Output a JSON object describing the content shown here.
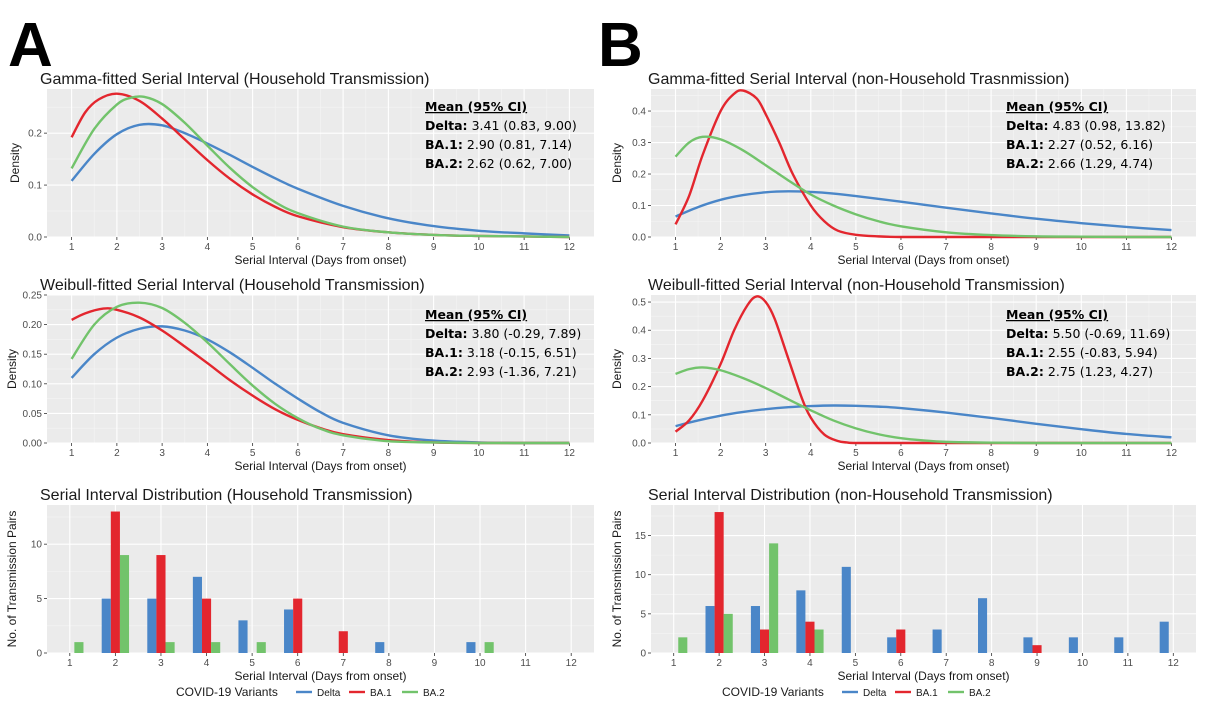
{
  "panel_letters": [
    "A",
    "B"
  ],
  "colors": {
    "Delta": "#4a86c8",
    "BA.1": "#e3262e",
    "BA.2": "#72c36b"
  },
  "legend": {
    "title": "COVID-19 Variants",
    "items": [
      "Delta",
      "BA.1",
      "BA.2"
    ]
  },
  "chart_data": [
    {
      "id": "A-gamma",
      "type": "line",
      "title": "Gamma-fitted Serial Interval (Household Transmission)",
      "xlabel": "Serial Interval (Days from onset)",
      "ylabel": "Density",
      "xlim": [
        1,
        12
      ],
      "ylim": [
        0,
        0.285
      ],
      "yticks": [
        0.0,
        0.1,
        0.2
      ],
      "ytick_labels": [
        "0.0",
        "0.1",
        "0.2"
      ],
      "xticks": [
        1,
        2,
        3,
        4,
        5,
        6,
        7,
        8,
        9,
        10,
        11,
        12
      ],
      "annotation": {
        "header": "Mean (95% CI)",
        "lines": [
          {
            "variant": "Delta:",
            "value": "3.41 (0.83, 9.00)"
          },
          {
            "variant": "BA.1:",
            "value": "2.90 (0.81, 7.14)"
          },
          {
            "variant": "BA.2:",
            "value": "2.62 (0.62, 7.00)"
          }
        ]
      },
      "series": [
        {
          "name": "Delta",
          "x": [
            1,
            1.5,
            2,
            2.5,
            3,
            3.5,
            4,
            4.5,
            5,
            5.5,
            6,
            7,
            8,
            9,
            10,
            11,
            12
          ],
          "y": [
            0.108,
            0.16,
            0.198,
            0.216,
            0.215,
            0.2,
            0.18,
            0.158,
            0.135,
            0.113,
            0.093,
            0.06,
            0.036,
            0.021,
            0.012,
            0.007,
            0.003
          ]
        },
        {
          "name": "BA.1",
          "x": [
            1,
            1.3,
            1.6,
            2,
            2.5,
            3,
            3.5,
            4,
            4.5,
            5,
            5.5,
            6,
            7,
            8,
            9,
            10,
            11,
            12
          ],
          "y": [
            0.192,
            0.24,
            0.265,
            0.276,
            0.262,
            0.228,
            0.188,
            0.148,
            0.112,
            0.082,
            0.058,
            0.04,
            0.019,
            0.009,
            0.004,
            0.002,
            0.001,
            0.0
          ]
        },
        {
          "name": "BA.2",
          "x": [
            1,
            1.5,
            2,
            2.3,
            2.6,
            3,
            3.5,
            4,
            4.5,
            5,
            5.5,
            6,
            7,
            8,
            9,
            10,
            11,
            12
          ],
          "y": [
            0.132,
            0.208,
            0.255,
            0.268,
            0.27,
            0.256,
            0.22,
            0.176,
            0.133,
            0.096,
            0.067,
            0.046,
            0.02,
            0.009,
            0.004,
            0.002,
            0.001,
            0.0
          ]
        }
      ]
    },
    {
      "id": "A-weibull",
      "type": "line",
      "title": "Weibull-fitted Serial Interval (Household Transmission)",
      "xlabel": "Serial Interval (Days from onset)",
      "ylabel": "Density",
      "xlim": [
        1,
        12
      ],
      "ylim": [
        0,
        0.25
      ],
      "yticks": [
        0.0,
        0.05,
        0.1,
        0.15,
        0.2,
        0.25
      ],
      "ytick_labels": [
        "0.00",
        "0.05",
        "0.10",
        "0.15",
        "0.20",
        "0.25"
      ],
      "xticks": [
        1,
        2,
        3,
        4,
        5,
        6,
        7,
        8,
        9,
        10,
        11,
        12
      ],
      "annotation": {
        "header": "Mean (95% CI)",
        "lines": [
          {
            "variant": "Delta:",
            "value": "3.80 (-0.29, 7.89)"
          },
          {
            "variant": "BA.1:",
            "value": "3.18 (-0.15, 6.51)"
          },
          {
            "variant": "BA.2:",
            "value": "2.93 (-1.36, 7.21)"
          }
        ]
      },
      "series": [
        {
          "name": "Delta",
          "x": [
            1,
            1.5,
            2,
            2.5,
            3,
            3.5,
            4,
            4.5,
            5,
            5.5,
            6,
            6.5,
            7,
            8,
            9,
            10,
            11,
            12
          ],
          "y": [
            0.11,
            0.15,
            0.178,
            0.193,
            0.197,
            0.19,
            0.175,
            0.153,
            0.127,
            0.1,
            0.075,
            0.052,
            0.034,
            0.013,
            0.004,
            0.001,
            0.0,
            0.0
          ]
        },
        {
          "name": "BA.1",
          "x": [
            1,
            1.3,
            1.7,
            2,
            2.5,
            3,
            3.5,
            4,
            4.5,
            5,
            5.5,
            6,
            6.5,
            7,
            8,
            9,
            10,
            11,
            12
          ],
          "y": [
            0.208,
            0.219,
            0.227,
            0.225,
            0.212,
            0.19,
            0.163,
            0.135,
            0.106,
            0.08,
            0.057,
            0.039,
            0.025,
            0.015,
            0.005,
            0.001,
            0.0,
            0.0,
            0.0
          ]
        },
        {
          "name": "BA.2",
          "x": [
            1,
            1.5,
            2,
            2.5,
            3,
            3.5,
            4,
            4.5,
            5,
            5.5,
            6,
            6.5,
            7,
            8,
            9,
            10,
            11,
            12
          ],
          "y": [
            0.142,
            0.2,
            0.23,
            0.237,
            0.228,
            0.203,
            0.17,
            0.133,
            0.097,
            0.066,
            0.042,
            0.024,
            0.013,
            0.003,
            0.001,
            0.0,
            0.0,
            0.0
          ]
        }
      ]
    },
    {
      "id": "A-bars",
      "type": "bar",
      "title": "Serial Interval Distribution (Household Transmission)",
      "xlabel": "Serial Interval (Days from onset)",
      "ylabel": "No. of Transmission Pairs",
      "categories": [
        "1",
        "2",
        "3",
        "4",
        "5",
        "6",
        "7",
        "8",
        "9",
        "10",
        "11",
        "12"
      ],
      "ylim": [
        0,
        13.6
      ],
      "yticks": [
        0,
        5,
        10
      ],
      "ytick_labels": [
        "0",
        "5",
        "10"
      ],
      "series": [
        {
          "name": "Delta",
          "values": [
            0,
            5,
            5,
            7,
            3,
            4,
            0,
            1,
            0,
            1,
            0,
            0
          ]
        },
        {
          "name": "BA.1",
          "values": [
            0,
            13,
            9,
            5,
            0,
            5,
            2,
            0,
            0,
            0,
            0,
            0
          ]
        },
        {
          "name": "BA.2",
          "values": [
            1,
            9,
            1,
            1,
            1,
            0,
            0,
            0,
            0,
            1,
            0,
            0
          ]
        }
      ]
    },
    {
      "id": "B-gamma",
      "type": "line",
      "title": "Gamma-fitted Serial Interval (non-Household Trasnmission)",
      "xlabel": "Serial Interval (Days from onset)",
      "ylabel": "Density",
      "xlim": [
        1,
        12
      ],
      "ylim": [
        0,
        0.47
      ],
      "yticks": [
        0.0,
        0.1,
        0.2,
        0.3,
        0.4
      ],
      "ytick_labels": [
        "0.0",
        "0.1",
        "0.2",
        "0.3",
        "0.4"
      ],
      "xticks": [
        1,
        2,
        3,
        4,
        5,
        6,
        7,
        8,
        9,
        10,
        11,
        12
      ],
      "annotation": {
        "header": "Mean (95% CI)",
        "lines": [
          {
            "variant": "Delta:",
            "value": "4.83 (0.98, 13.82)"
          },
          {
            "variant": "BA.1:",
            "value": "2.27 (0.52, 6.16)"
          },
          {
            "variant": "BA.2:",
            "value": "2.66 (1.29, 4.74)"
          }
        ]
      },
      "series": [
        {
          "name": "Delta",
          "x": [
            1,
            1.5,
            2,
            2.5,
            3,
            3.5,
            4,
            4.5,
            5,
            6,
            7,
            8,
            9,
            10,
            11,
            12
          ],
          "y": [
            0.065,
            0.095,
            0.118,
            0.133,
            0.142,
            0.145,
            0.143,
            0.138,
            0.13,
            0.112,
            0.093,
            0.075,
            0.058,
            0.044,
            0.032,
            0.022
          ]
        },
        {
          "name": "BA.1",
          "x": [
            1,
            1.3,
            1.6,
            2,
            2.3,
            2.5,
            2.8,
            3,
            3.3,
            3.6,
            4,
            4.3,
            4.6,
            5,
            5.5,
            6,
            7,
            8,
            9,
            10,
            11,
            12
          ],
          "y": [
            0.04,
            0.13,
            0.26,
            0.4,
            0.455,
            0.465,
            0.44,
            0.39,
            0.3,
            0.2,
            0.1,
            0.05,
            0.02,
            0.007,
            0.002,
            0.0,
            0.0,
            0.0,
            0.0,
            0.0,
            0.0,
            0.0
          ]
        },
        {
          "name": "BA.2",
          "x": [
            1,
            1.3,
            1.6,
            2,
            2.5,
            3,
            3.5,
            4,
            4.5,
            5,
            5.5,
            6,
            7,
            8,
            9,
            10,
            11,
            12
          ],
          "y": [
            0.255,
            0.3,
            0.318,
            0.31,
            0.275,
            0.228,
            0.18,
            0.135,
            0.1,
            0.072,
            0.05,
            0.034,
            0.015,
            0.006,
            0.002,
            0.001,
            0.0,
            0.0
          ]
        }
      ]
    },
    {
      "id": "B-weibull",
      "type": "line",
      "title": "Weibull-fitted Serial Interval (non-Household Transmission)",
      "xlabel": "Serial Interval (Days from onset)",
      "ylabel": "Density",
      "xlim": [
        1,
        12
      ],
      "ylim": [
        0,
        0.525
      ],
      "yticks": [
        0.0,
        0.1,
        0.2,
        0.3,
        0.4,
        0.5
      ],
      "ytick_labels": [
        "0.0",
        "0.1",
        "0.2",
        "0.3",
        "0.4",
        "0.5"
      ],
      "xticks": [
        1,
        2,
        3,
        4,
        5,
        6,
        7,
        8,
        9,
        10,
        11,
        12
      ],
      "annotation": {
        "header": "Mean (95% CI)",
        "lines": [
          {
            "variant": "Delta:",
            "value": "5.50 (-0.69, 11.69)"
          },
          {
            "variant": "BA.1:",
            "value": "2.55 (-0.83, 5.94)"
          },
          {
            "variant": "BA.2:",
            "value": "2.75 (1.23, 4.27)"
          }
        ]
      },
      "series": [
        {
          "name": "Delta",
          "x": [
            1,
            1.5,
            2,
            2.5,
            3,
            3.5,
            4,
            4.5,
            5,
            5.5,
            6,
            7,
            8,
            9,
            10,
            11,
            12
          ],
          "y": [
            0.06,
            0.08,
            0.097,
            0.11,
            0.12,
            0.127,
            0.131,
            0.133,
            0.132,
            0.129,
            0.124,
            0.108,
            0.089,
            0.068,
            0.049,
            0.032,
            0.02
          ]
        },
        {
          "name": "BA.1",
          "x": [
            1,
            1.3,
            1.6,
            2,
            2.3,
            2.6,
            2.8,
            3,
            3.2,
            3.5,
            3.8,
            4,
            4.3,
            4.6,
            4.8,
            5,
            6,
            7,
            8,
            9,
            10,
            11,
            12
          ],
          "y": [
            0.04,
            0.08,
            0.15,
            0.28,
            0.4,
            0.49,
            0.52,
            0.5,
            0.44,
            0.3,
            0.16,
            0.09,
            0.03,
            0.007,
            0.002,
            0.0,
            0.0,
            0.0,
            0.0,
            0.0,
            0.0,
            0.0,
            0.0
          ]
        },
        {
          "name": "BA.2",
          "x": [
            1,
            1.3,
            1.6,
            2,
            2.5,
            3,
            3.5,
            4,
            4.5,
            5,
            5.5,
            6,
            6.5,
            7,
            8,
            9,
            10,
            11,
            12
          ],
          "y": [
            0.245,
            0.262,
            0.268,
            0.258,
            0.23,
            0.195,
            0.155,
            0.116,
            0.08,
            0.052,
            0.031,
            0.017,
            0.009,
            0.004,
            0.001,
            0.0,
            0.0,
            0.0,
            0.0
          ]
        }
      ]
    },
    {
      "id": "B-bars",
      "type": "bar",
      "title": "Serial Interval Distribution (non-Household Transmission)",
      "xlabel": "Serial Interval (Days from onset)",
      "ylabel": "No. of Transmission Pairs",
      "categories": [
        "1",
        "2",
        "3",
        "4",
        "5",
        "6",
        "7",
        "8",
        "9",
        "10",
        "11",
        "12"
      ],
      "ylim": [
        0,
        18.9
      ],
      "yticks": [
        0,
        5,
        10,
        15
      ],
      "ytick_labels": [
        "0",
        "5",
        "10",
        "15"
      ],
      "series": [
        {
          "name": "Delta",
          "values": [
            0,
            6,
            6,
            8,
            11,
            2,
            3,
            7,
            2,
            2,
            2,
            4
          ]
        },
        {
          "name": "BA.1",
          "values": [
            0,
            18,
            3,
            4,
            0,
            3,
            0,
            0,
            1,
            0,
            0,
            0
          ]
        },
        {
          "name": "BA.2",
          "values": [
            2,
            5,
            14,
            3,
            0,
            0,
            0,
            0,
            0,
            0,
            0,
            0
          ]
        }
      ]
    }
  ]
}
